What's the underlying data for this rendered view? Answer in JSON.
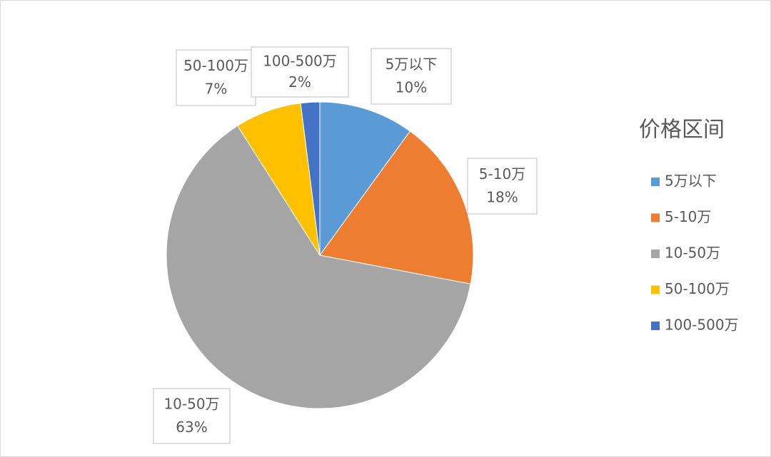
{
  "chart_data": {
    "type": "pie",
    "legend_title": "价格区间",
    "categories": [
      "5万以下",
      "5-10万",
      "10-50万",
      "50-100万",
      "100-500万"
    ],
    "values": [
      10,
      18,
      63,
      7,
      2
    ],
    "value_labels": [
      "10%",
      "18%",
      "63%",
      "7%",
      "2%"
    ],
    "colors": [
      "#5b9bd5",
      "#ed7d31",
      "#a5a5a5",
      "#ffc000",
      "#4472c4"
    ],
    "legend": "right"
  }
}
